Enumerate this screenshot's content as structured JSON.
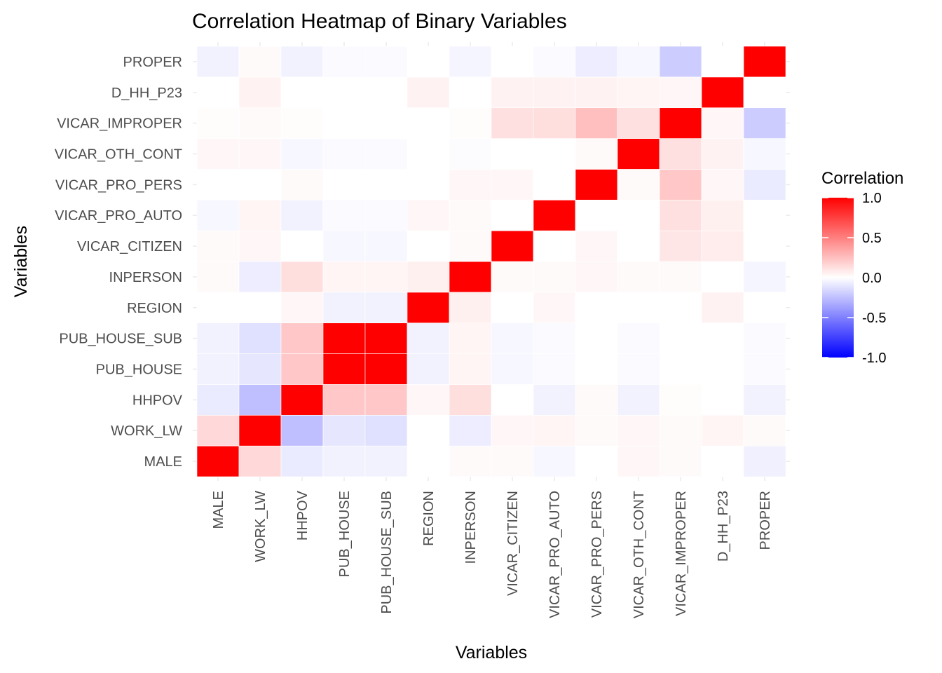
{
  "chart_data": {
    "type": "heatmap",
    "title": "Correlation Heatmap of Binary Variables",
    "xlabel": "Variables",
    "ylabel": "Variables",
    "variables": [
      "MALE",
      "WORK_LW",
      "HHPOV",
      "PUB_HOUSE",
      "PUB_HOUSE_SUB",
      "REGION",
      "INPERSON",
      "VICAR_CITIZEN",
      "VICAR_PRO_AUTO",
      "VICAR_PRO_PERS",
      "VICAR_OTH_CONT",
      "VICAR_IMPROPER",
      "D_HH_P23",
      "PROPER"
    ],
    "matrix": [
      [
        1.0,
        0.15,
        -0.08,
        -0.05,
        -0.05,
        0.0,
        0.02,
        0.02,
        -0.03,
        0.0,
        0.03,
        0.02,
        0.0,
        -0.06
      ],
      [
        0.15,
        1.0,
        -0.25,
        -0.1,
        -0.12,
        0.0,
        -0.07,
        0.03,
        0.04,
        0.02,
        0.03,
        0.02,
        0.04,
        0.02
      ],
      [
        -0.08,
        -0.25,
        1.0,
        0.22,
        0.22,
        0.03,
        0.13,
        0.0,
        -0.05,
        0.02,
        -0.05,
        0.01,
        0.0,
        -0.05
      ],
      [
        -0.05,
        -0.1,
        0.22,
        1.0,
        1.0,
        -0.05,
        0.04,
        -0.03,
        -0.02,
        0.0,
        -0.02,
        0.0,
        0.0,
        -0.02
      ],
      [
        -0.05,
        -0.12,
        0.22,
        1.0,
        1.0,
        -0.05,
        0.04,
        -0.03,
        -0.02,
        0.0,
        -0.02,
        0.0,
        0.0,
        -0.02
      ],
      [
        0.0,
        0.0,
        0.03,
        -0.05,
        -0.05,
        1.0,
        0.06,
        0.0,
        0.03,
        0.0,
        0.0,
        0.0,
        0.05,
        0.0
      ],
      [
        0.02,
        -0.07,
        0.13,
        0.04,
        0.04,
        0.06,
        1.0,
        0.02,
        0.02,
        0.03,
        0.02,
        0.02,
        0.0,
        -0.04
      ],
      [
        0.02,
        0.03,
        0.0,
        -0.03,
        -0.03,
        0.0,
        0.02,
        1.0,
        0.0,
        0.03,
        0.0,
        0.1,
        0.07,
        0.0
      ],
      [
        -0.03,
        0.04,
        -0.05,
        -0.02,
        -0.02,
        0.03,
        0.02,
        0.0,
        1.0,
        0.0,
        0.0,
        0.12,
        0.06,
        0.0
      ],
      [
        0.0,
        0.0,
        0.02,
        0.0,
        0.0,
        0.0,
        0.03,
        0.03,
        0.0,
        1.0,
        0.02,
        0.22,
        0.03,
        -0.08
      ],
      [
        0.03,
        0.03,
        -0.03,
        -0.02,
        -0.02,
        0.0,
        -0.01,
        0.0,
        0.0,
        0.02,
        1.0,
        0.12,
        0.05,
        -0.03
      ],
      [
        0.01,
        0.02,
        0.01,
        0.0,
        0.0,
        0.0,
        0.01,
        0.12,
        0.13,
        0.25,
        0.12,
        1.0,
        0.03,
        -0.2
      ],
      [
        0.0,
        0.05,
        0.0,
        0.0,
        0.0,
        0.05,
        0.0,
        0.05,
        0.05,
        0.05,
        0.04,
        0.03,
        1.0,
        0.0
      ],
      [
        -0.05,
        0.02,
        -0.05,
        -0.02,
        -0.02,
        0.0,
        -0.04,
        0.0,
        -0.02,
        -0.07,
        -0.03,
        -0.2,
        0.0,
        1.0
      ]
    ],
    "scale": {
      "low": -1.0,
      "mid": 0.0,
      "high": 1.0,
      "low_color": "#0000ff",
      "mid_color": "#ffffff",
      "high_color": "#ff0000"
    },
    "legend": {
      "title": "Correlation",
      "ticks": [
        "1.0",
        "0.5",
        "0.0",
        "-0.5",
        "-1.0"
      ],
      "tick_values": [
        1.0,
        0.5,
        0.0,
        -0.5,
        -1.0
      ],
      "placement": "right"
    },
    "grid": true,
    "x_tick_rotation": "vertical"
  }
}
